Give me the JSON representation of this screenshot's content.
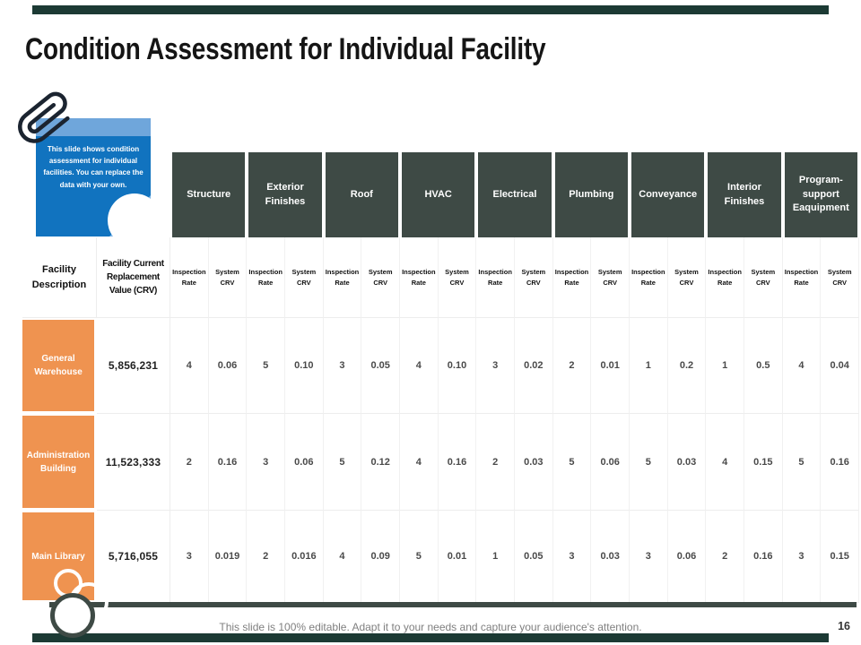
{
  "slide": {
    "title": "Condition Assessment for Individual Facility",
    "footer": "This slide is 100% editable. Adapt it to your needs and capture your audience's attention.",
    "page_number": "16"
  },
  "note": {
    "text": "This slide shows condition assessment for individual facilities. You can replace the data with your own."
  },
  "icons": {
    "paperclip": "paperclip-icon"
  },
  "colors": {
    "header_dark": "#3E4A45",
    "row_orange": "#EF9350",
    "note_blue": "#1173BF",
    "note_blue_light": "#6FA6DB",
    "accent_bar": "#1C3A34",
    "grid_line": "#EDEDED",
    "footer_gray": "#7F7F7F"
  },
  "table": {
    "corner_headers": [
      "Facility Description",
      "Facility Current Replacement Value (CRV)"
    ],
    "category_headers": [
      "Structure",
      "Exterior Finishes",
      "Roof",
      "HVAC",
      "Electrical",
      "Plumbing",
      "Conveyance",
      "Interior Finishes",
      "Program- support Eaquipment"
    ],
    "metric_headers": [
      "Inspection Rate",
      "System CRV"
    ],
    "rows": [
      {
        "facility": "General Warehouse",
        "crv": "5,856,231",
        "values": [
          "4",
          "0.06",
          "5",
          "0.10",
          "3",
          "0.05",
          "4",
          "0.10",
          "3",
          "0.02",
          "2",
          "0.01",
          "1",
          "0.2",
          "1",
          "0.5",
          "4",
          "0.04"
        ]
      },
      {
        "facility": "Administration Building",
        "crv": "11,523,333",
        "values": [
          "2",
          "0.16",
          "3",
          "0.06",
          "5",
          "0.12",
          "4",
          "0.16",
          "2",
          "0.03",
          "5",
          "0.06",
          "5",
          "0.03",
          "4",
          "0.15",
          "5",
          "0.16"
        ]
      },
      {
        "facility": "Main Library",
        "crv": "5,716,055",
        "values": [
          "3",
          "0.019",
          "2",
          "0.016",
          "4",
          "0.09",
          "5",
          "0.01",
          "1",
          "0.05",
          "3",
          "0.03",
          "3",
          "0.06",
          "2",
          "0.16",
          "3",
          "0.15"
        ]
      }
    ]
  }
}
